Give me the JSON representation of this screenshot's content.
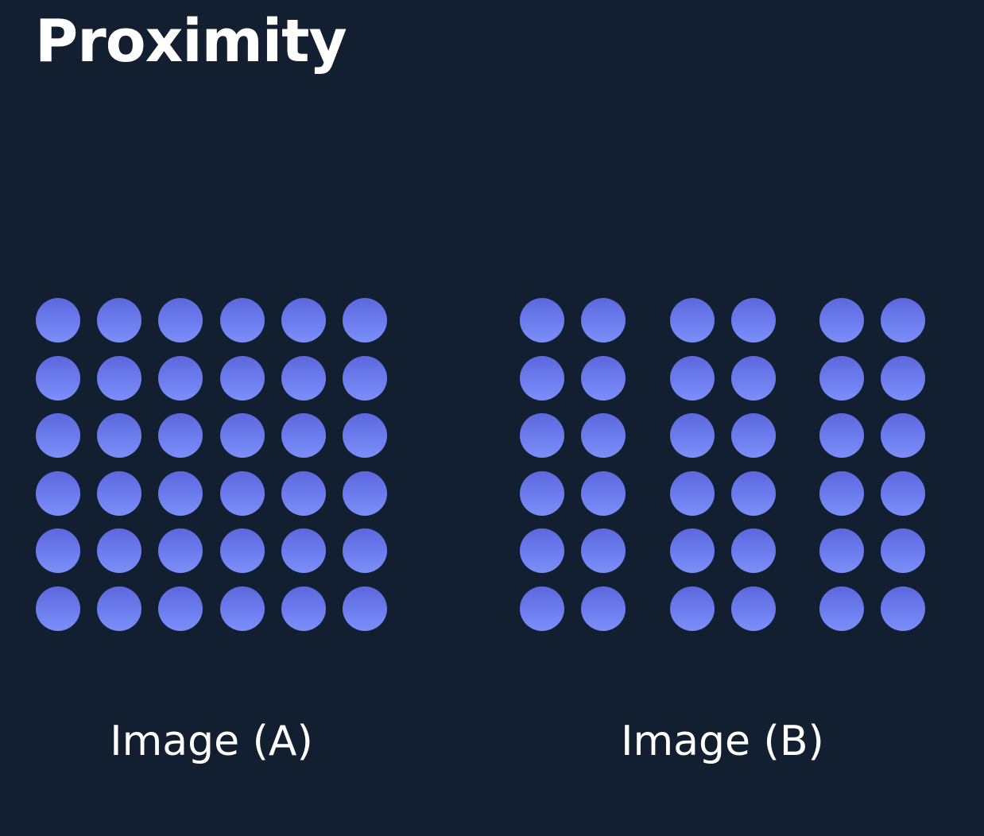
{
  "title": "Proximity",
  "dot_color_top": "#5c68dd",
  "dot_color_bottom": "#7b8ff8",
  "background_color": "#121f31",
  "images": [
    {
      "caption": "Image (A)",
      "rows": 6,
      "columns": 6,
      "column_grouping": [
        6
      ]
    },
    {
      "caption": "Image (B)",
      "rows": 6,
      "columns": 6,
      "column_grouping": [
        2,
        2,
        2
      ]
    }
  ]
}
